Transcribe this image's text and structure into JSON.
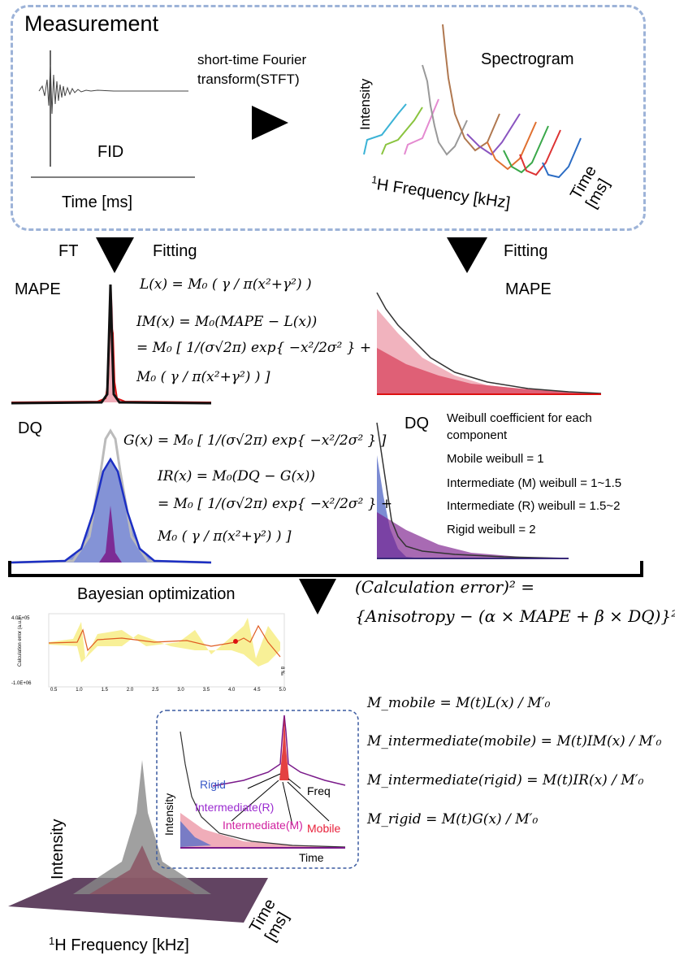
{
  "measurement": {
    "title": "Measurement",
    "fid_label": "FID",
    "time_axis": "Time [ms]",
    "stft_line1": "short-time Fourier",
    "stft_line2": "transform(STFT)",
    "spectrogram_title": "Spectrogram",
    "intensity": "Intensity",
    "freq_sup": "1",
    "freq_rest": "H Frequency [kHz]",
    "time_line1": "Time",
    "time_line2": "[ms]"
  },
  "left": {
    "ft": "FT",
    "fitting": "Fitting",
    "mape": "MAPE",
    "dq": "DQ",
    "eq_L": "L(x) = M₀ ( γ / π(x²+γ²) )",
    "eq_IM_1": "IM(x) = M₀(MAPE − L(x))",
    "eq_IM_2": "= M₀ [ 1/(σ√2π) exp{ −x²/2σ² } +",
    "eq_IM_3": "M₀ ( γ / π(x²+γ²) ) ]",
    "eq_G": "G(x) = M₀ [ 1/(σ√2π) exp{ −x²/2σ² } ]",
    "eq_IR_1": "IR(x) = M₀(DQ − G(x))",
    "eq_IR_2": "= M₀ [ 1/(σ√2π) exp{ −x²/2σ² } +",
    "eq_IR_3": "M₀ ( γ / π(x²+γ²) ) ]"
  },
  "right": {
    "fitting": "Fitting",
    "mape": "MAPE",
    "dq": "DQ",
    "weibull_title_1": "Weibull coefficient for each",
    "weibull_title_2": "component",
    "weibull_lines": [
      "Mobile weibull = 1",
      "Intermediate (M) weibull =  1~1.5",
      "Intermediate (R) weibull = 1.5~2",
      "Rigid weibull = 2"
    ]
  },
  "bayes": {
    "title": "Bayesian optimization",
    "err_lhs": "(Calculation error)² =",
    "err_rhs": "{Anisotropy − (α × MAPE + β × DQ)}²",
    "ylabel": "Calculation error (a.u.)",
    "ytick_top": "4.0E+05",
    "ytick_bot": "-1.0E+06",
    "xticks": [
      "0.5",
      "1.0",
      "1.5",
      "2.0",
      "2.5",
      "3.0",
      "3.5",
      "4.0",
      "4.5",
      "5.0"
    ],
    "right_tick": "8 ‰"
  },
  "bottom": {
    "rigid": "Rigid",
    "freq": "Freq",
    "intermediate_r": "Intermediate(R)",
    "intermediate_m": "Intermediate(M)",
    "mobile": "Mobile",
    "intensity": "Intensity",
    "time": "Time",
    "big_intensity": "Intensity",
    "big_freq_sup": "1",
    "big_freq_rest": "H Frequency [kHz]",
    "big_time_1": "Time",
    "big_time_2": "[ms]",
    "eq_mobile": "M_mobile = M(t)L(x) / M′₀",
    "eq_int_mobile": "M_intermediate(mobile) = M(t)IM(x) / M′₀",
    "eq_int_rigid": "M_intermediate(rigid) = M(t)IR(x) / M′₀",
    "eq_rigid": "M_rigid = M(t)G(x) / M′₀"
  },
  "colors": {
    "dashed_border": "#9db3d8",
    "pink_fill": "#e98a9b",
    "red": "#e8203a",
    "blue_fill": "#5b6fc8",
    "blue_line": "#1c2fc4",
    "purple": "#7a1a8a",
    "magenta": "#d6209a",
    "bayes_band": "#f7ee8c"
  }
}
